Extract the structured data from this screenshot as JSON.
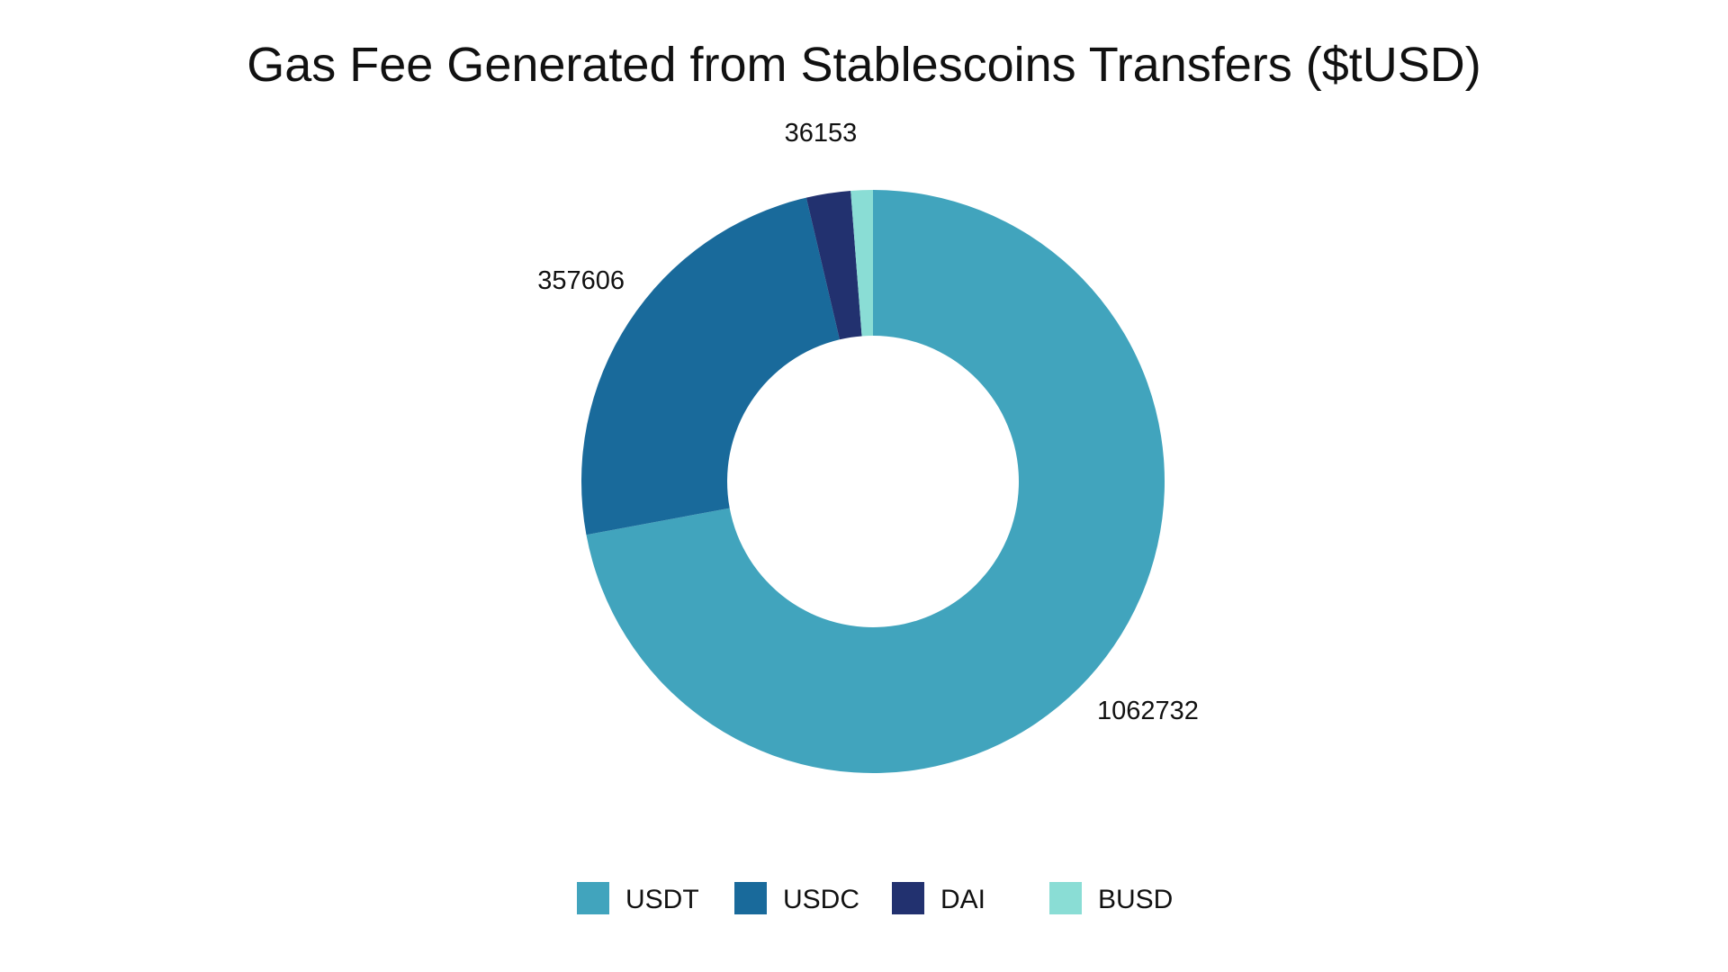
{
  "chart_data": {
    "type": "pie",
    "variant": "donut",
    "title": "Gas Fee Generated from Stablescoins Transfers ($tUSD)",
    "categories": [
      "USDT",
      "USDC",
      "DAI",
      "BUSD"
    ],
    "values": [
      1062732,
      357606,
      36153,
      18000
    ],
    "data_labels": [
      "1062732",
      "357606",
      "36153",
      ""
    ],
    "colors": [
      "#41A4BD",
      "#196A9B",
      "#22316F",
      "#8ADDD5"
    ],
    "legend": {
      "position": "bottom",
      "entries": [
        "USDT",
        "USDC",
        "DAI",
        "BUSD"
      ]
    },
    "start_angle": "top",
    "direction": "clockwise"
  }
}
